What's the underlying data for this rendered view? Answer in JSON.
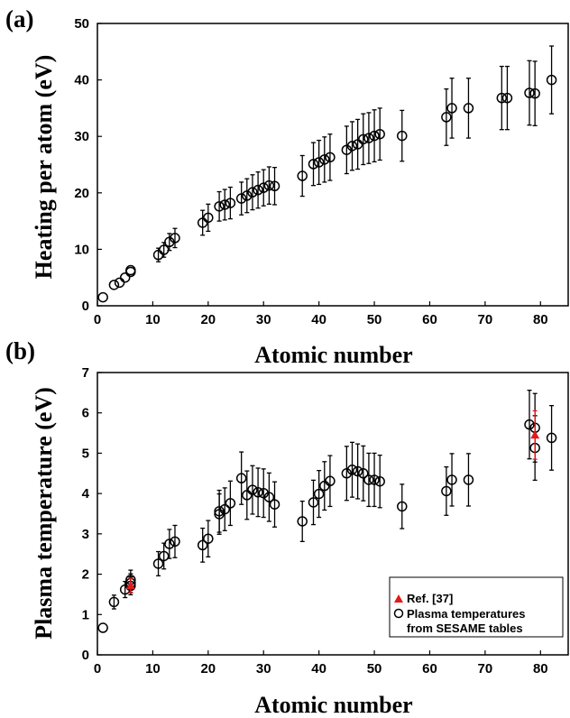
{
  "chart_data": [
    {
      "type": "scatter",
      "panel_label": "(a)",
      "xlabel": "Atomic number",
      "ylabel": "Heating per atom (eV)",
      "xlim": [
        0,
        85
      ],
      "ylim": [
        0,
        50
      ],
      "xticks": [
        0,
        10,
        20,
        30,
        40,
        50,
        60,
        70,
        80
      ],
      "yticks": [
        0,
        10,
        20,
        30,
        40,
        50
      ],
      "series": [
        {
          "marker": "open-circle",
          "x": [
            1,
            3,
            4,
            5,
            6,
            6,
            11,
            12,
            13,
            14,
            19,
            20,
            22,
            23,
            24,
            26,
            27,
            28,
            29,
            30,
            31,
            32,
            37,
            39,
            40,
            41,
            42,
            45,
            46,
            47,
            48,
            49,
            50,
            51,
            55,
            63,
            64,
            67,
            73,
            74,
            78,
            79,
            82
          ],
          "y": [
            1.5,
            3.7,
            4.1,
            5.0,
            6.0,
            6.3,
            9.0,
            9.9,
            11.3,
            12.0,
            14.7,
            15.6,
            17.6,
            17.9,
            18.2,
            19.0,
            19.5,
            20.1,
            20.5,
            20.9,
            21.3,
            21.2,
            23.0,
            25.1,
            25.4,
            25.9,
            26.3,
            27.6,
            28.3,
            28.6,
            29.5,
            29.7,
            30.1,
            30.4,
            30.1,
            33.4,
            35.0,
            35.0,
            36.8,
            36.8,
            37.7,
            37.6,
            40.0
          ],
          "err": [
            0,
            0,
            0,
            0,
            0,
            0,
            1.2,
            1.3,
            1.5,
            1.7,
            2.2,
            2.4,
            2.6,
            2.7,
            2.8,
            2.9,
            3.0,
            3.1,
            3.2,
            3.2,
            3.3,
            3.3,
            3.6,
            3.8,
            3.9,
            4.0,
            4.1,
            4.2,
            4.3,
            4.4,
            4.5,
            4.5,
            4.6,
            4.6,
            4.5,
            5.0,
            5.3,
            5.3,
            5.6,
            5.6,
            5.7,
            5.7,
            6.0
          ]
        }
      ]
    },
    {
      "type": "scatter",
      "panel_label": "(b)",
      "xlabel": "Atomic number",
      "ylabel": "Plasma temperature (eV)",
      "xlim": [
        0,
        85
      ],
      "ylim": [
        0,
        7
      ],
      "xticks": [
        0,
        10,
        20,
        30,
        40,
        50,
        60,
        70,
        80
      ],
      "yticks": [
        0,
        1,
        2,
        3,
        4,
        5,
        6,
        7
      ],
      "legend_position": "bottom-right",
      "series": [
        {
          "name": "Plasma temperatures from SESAME tables",
          "legend_lines": [
            "Plasma temperatures",
            "from SESAME tables"
          ],
          "marker": "open-circle",
          "x": [
            1,
            3,
            5,
            6,
            6,
            6,
            11,
            12,
            13,
            14,
            19,
            20,
            22,
            22,
            23,
            24,
            26,
            27,
            28,
            29,
            30,
            31,
            32,
            37,
            39,
            40,
            41,
            42,
            45,
            46,
            47,
            48,
            49,
            50,
            51,
            55,
            63,
            64,
            67,
            78,
            79,
            79,
            82
          ],
          "y": [
            0.67,
            1.31,
            1.62,
            1.71,
            1.78,
            1.86,
            2.26,
            2.45,
            2.75,
            2.81,
            2.72,
            2.88,
            3.49,
            3.56,
            3.61,
            3.76,
            4.38,
            3.96,
            4.09,
            4.03,
            4.01,
            3.91,
            3.73,
            3.31,
            3.78,
            3.99,
            4.19,
            4.31,
            4.5,
            4.59,
            4.55,
            4.5,
            4.34,
            4.34,
            4.3,
            3.68,
            4.06,
            4.34,
            4.34,
            5.71,
            5.63,
            5.13,
            5.38
          ],
          "err": [
            0,
            0.17,
            0.2,
            0.22,
            0.23,
            0.24,
            0.3,
            0.32,
            0.36,
            0.4,
            0.42,
            0.45,
            0.5,
            0.52,
            0.53,
            0.55,
            0.65,
            0.6,
            0.6,
            0.6,
            0.6,
            0.6,
            0.56,
            0.5,
            0.55,
            0.58,
            0.6,
            0.63,
            0.67,
            0.68,
            0.68,
            0.68,
            0.66,
            0.66,
            0.65,
            0.55,
            0.6,
            0.65,
            0.65,
            0.85,
            0.85,
            0.8,
            0.8
          ]
        },
        {
          "name": "Ref. [37]",
          "marker": "filled-triangle",
          "color": "#e31a1c",
          "x": [
            6,
            79
          ],
          "y": [
            1.72,
            5.45
          ],
          "err": [
            0.18,
            0.6
          ]
        }
      ]
    }
  ]
}
